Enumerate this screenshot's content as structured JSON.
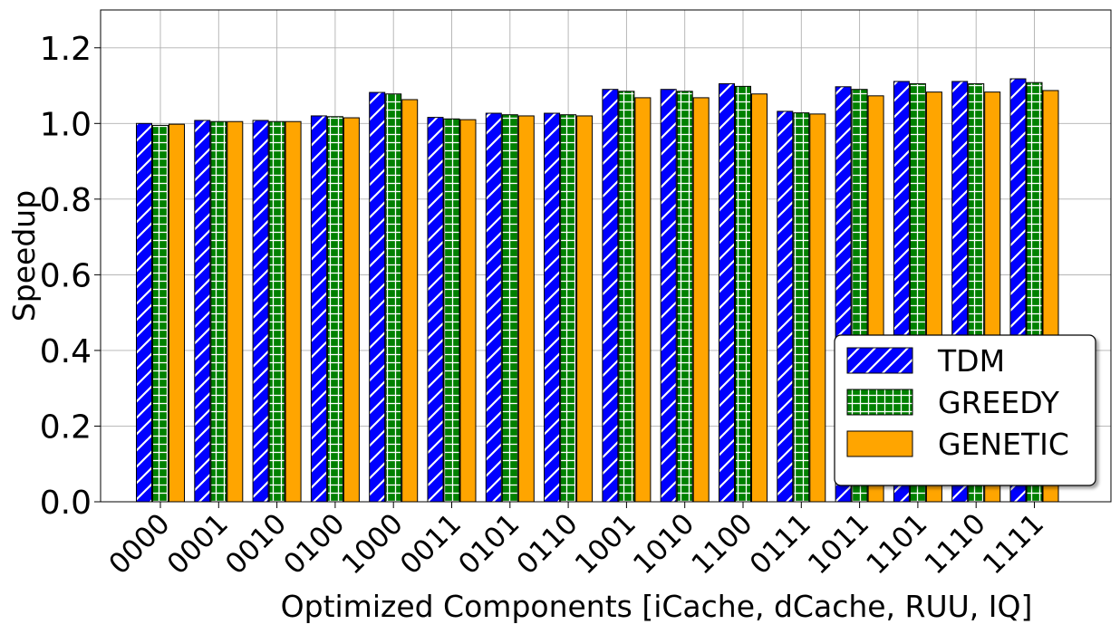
{
  "chart_data": {
    "type": "bar",
    "title": "",
    "xlabel": "Optimized Components  [iCache, dCache, RUU, IQ]",
    "ylabel": "Speedup",
    "ylim": [
      0,
      1.3
    ],
    "yticks": [
      "0.0",
      "0.2",
      "0.4",
      "0.6",
      "0.8",
      "1.0",
      "1.2"
    ],
    "grid": true,
    "legend_position": "lower-right",
    "categories": [
      "0000",
      "0001",
      "0010",
      "0100",
      "1000",
      "0011",
      "0101",
      "0110",
      "1001",
      "1010",
      "1100",
      "0111",
      "1011",
      "1101",
      "1110",
      "1111"
    ],
    "series": [
      {
        "name": "TDM",
        "color": "#0000ff",
        "hatch": "diagonal",
        "values": [
          1.0,
          1.008,
          1.008,
          1.02,
          1.082,
          1.016,
          1.027,
          1.027,
          1.09,
          1.09,
          1.105,
          1.032,
          1.097,
          1.111,
          1.111,
          1.118
        ]
      },
      {
        "name": "GREEDY",
        "color": "#008000",
        "hatch": "grid",
        "values": [
          0.995,
          1.005,
          1.005,
          1.018,
          1.078,
          1.012,
          1.023,
          1.023,
          1.085,
          1.085,
          1.098,
          1.028,
          1.09,
          1.105,
          1.105,
          1.108
        ]
      },
      {
        "name": "GENETIC",
        "color": "#ffa500",
        "hatch": "none",
        "values": [
          0.998,
          1.005,
          1.005,
          1.015,
          1.063,
          1.01,
          1.02,
          1.02,
          1.068,
          1.068,
          1.078,
          1.025,
          1.073,
          1.083,
          1.083,
          1.087
        ]
      }
    ]
  }
}
